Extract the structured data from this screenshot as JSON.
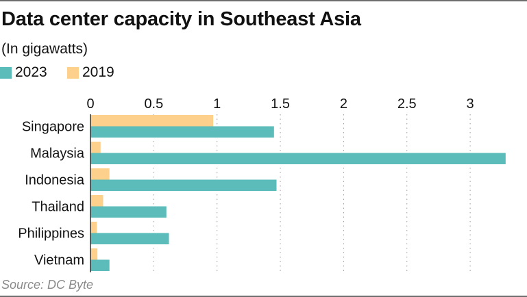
{
  "chart_data": {
    "type": "bar",
    "orientation": "horizontal",
    "title": "Data center capacity in Southeast Asia",
    "subtitle": "(In gigawatts)",
    "xlabel": "",
    "ylabel": "",
    "categories": [
      "Singapore",
      "Malaysia",
      "Indonesia",
      "Thailand",
      "Philippines",
      "Vietnam"
    ],
    "series": [
      {
        "name": "2019",
        "color": "#fdd08c",
        "values": [
          0.97,
          0.08,
          0.15,
          0.1,
          0.05,
          0.055
        ]
      },
      {
        "name": "2023",
        "color": "#5bbcb9",
        "values": [
          1.45,
          3.28,
          1.47,
          0.6,
          0.62,
          0.15
        ]
      }
    ],
    "legend_order": [
      "2023",
      "2019"
    ],
    "xlim": [
      0,
      3.3
    ],
    "xticks": [
      0,
      0.5,
      1,
      1.5,
      2,
      2.5,
      3
    ],
    "xtick_labels": [
      "0",
      "0.5",
      "1",
      "1.5",
      "2",
      "2.5",
      "3"
    ],
    "grid": "vertical dotted",
    "legend_position": "top-left",
    "source": "Source: DC Byte"
  }
}
